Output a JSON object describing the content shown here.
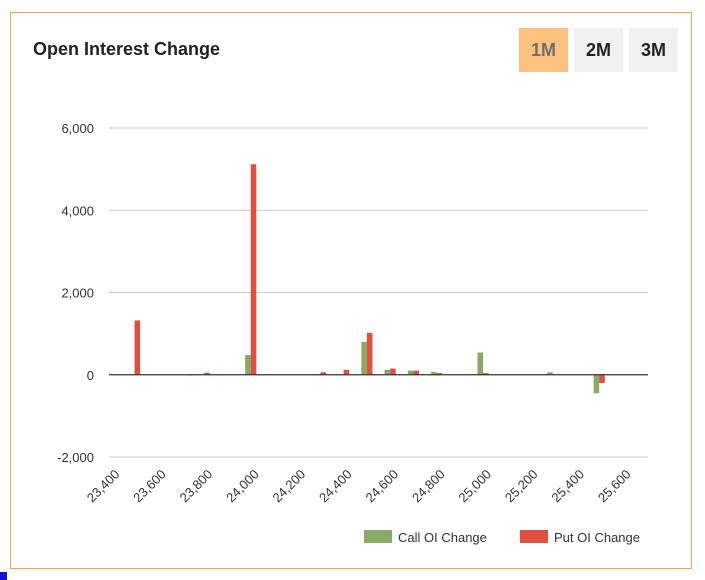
{
  "title": "Open Interest Change",
  "range_buttons": [
    {
      "label": "1M",
      "active": true
    },
    {
      "label": "2M",
      "active": false
    },
    {
      "label": "3M",
      "active": false
    }
  ],
  "colors": {
    "call": "#88aa66",
    "put": "#e05040",
    "accent": "#fcc27e",
    "border": "#f0a050"
  },
  "chart_data": {
    "type": "bar",
    "x": [
      23400,
      23450,
      23500,
      23550,
      23600,
      23650,
      23700,
      23750,
      23800,
      23850,
      23900,
      23950,
      24000,
      24050,
      24100,
      24150,
      24200,
      24250,
      24300,
      24350,
      24400,
      24450,
      24500,
      24550,
      24600,
      24650,
      24700,
      24750,
      24800,
      24850,
      24900,
      24950,
      25000,
      25050,
      25100,
      25150,
      25200,
      25250,
      25300,
      25350,
      25400,
      25450,
      25500,
      25550,
      25600,
      25650,
      25700
    ],
    "series": [
      {
        "name": "Call OI Change",
        "values": [
          0,
          0,
          0,
          0,
          0,
          0,
          0,
          10,
          0,
          0,
          0,
          0,
          480,
          0,
          0,
          0,
          0,
          0,
          0,
          0,
          0,
          0,
          800,
          0,
          120,
          0,
          100,
          0,
          70,
          0,
          0,
          0,
          540,
          0,
          0,
          0,
          0,
          0,
          60,
          0,
          0,
          0,
          -450,
          0,
          0,
          0,
          0
        ]
      },
      {
        "name": "Put OI Change",
        "values": [
          0,
          0,
          1320,
          0,
          0,
          0,
          0,
          0,
          50,
          0,
          0,
          0,
          5120,
          0,
          0,
          0,
          0,
          0,
          60,
          0,
          120,
          0,
          1020,
          0,
          150,
          0,
          100,
          0,
          40,
          0,
          0,
          0,
          40,
          0,
          0,
          0,
          0,
          0,
          0,
          0,
          0,
          0,
          -200,
          0,
          0,
          0,
          0
        ]
      }
    ],
    "y_ticks": [
      6000,
      4000,
      2000,
      0,
      -2000
    ],
    "y_tick_labels": [
      "6,000",
      "4,000",
      "2,000",
      "0",
      "-2,000"
    ],
    "x_ticks": [
      23400,
      23600,
      23800,
      24000,
      24200,
      24400,
      24600,
      24800,
      25000,
      25200,
      25400,
      25600
    ],
    "x_tick_labels": [
      "23,400",
      "23,600",
      "23,800",
      "24,000",
      "24,200",
      "24,400",
      "24,600",
      "24,800",
      "25,000",
      "25,200",
      "25,400",
      "25,600"
    ],
    "ylim": [
      -2000,
      6000
    ],
    "xlim": [
      23390,
      25710
    ],
    "grid": true,
    "legend_position": "bottom-right"
  }
}
